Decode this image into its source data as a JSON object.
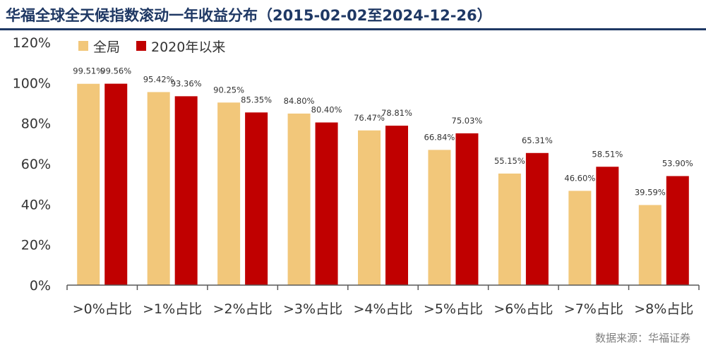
{
  "title": "华福全球全天候指数滚动一年收益分布（2015-02-02至2024-12-26）",
  "source": "数据来源：华福证券",
  "colors": {
    "series1": "#f2c77a",
    "series2": "#c00000",
    "title": "#1f3864",
    "axis": "#333333"
  },
  "chart_data": {
    "type": "bar",
    "categories": [
      ">0%占比",
      ">1%占比",
      ">2%占比",
      ">3%占比",
      ">4%占比",
      ">5%占比",
      ">6%占比",
      ">7%占比",
      ">8%占比"
    ],
    "series": [
      {
        "name": "全局",
        "values": [
          99.51,
          95.42,
          90.25,
          84.8,
          76.47,
          66.84,
          55.15,
          46.6,
          39.59
        ],
        "labels": [
          "99.51%",
          "95.42%",
          "90.25%",
          "84.80%",
          "76.47%",
          "66.84%",
          "55.15%",
          "46.60%",
          "39.59%"
        ]
      },
      {
        "name": "2020年以来",
        "values": [
          99.56,
          93.36,
          85.35,
          80.4,
          78.81,
          75.03,
          65.31,
          58.51,
          53.9
        ],
        "labels": [
          "99.56%",
          "93.36%",
          "85.35%",
          "80.40%",
          "78.81%",
          "75.03%",
          "65.31%",
          "58.51%",
          "53.90%"
        ]
      }
    ],
    "ylim": [
      0,
      120
    ],
    "yticks": [
      "0%",
      "20%",
      "40%",
      "60%",
      "80%",
      "100%",
      "120%"
    ],
    "grid": false,
    "legend_position": "top-left"
  }
}
